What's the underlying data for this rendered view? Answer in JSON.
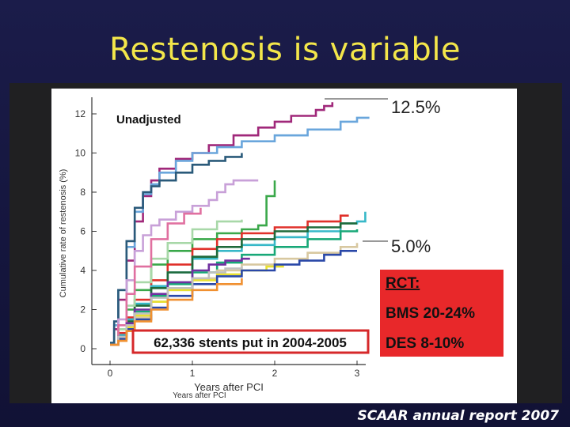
{
  "slide": {
    "title": "Restenosis is variable",
    "footer": "SCAAR annual report 2007"
  },
  "chart_data": {
    "type": "line",
    "subtitle": "Unadjusted",
    "xlabel": "Years after PCI",
    "xlabel_secondary": "Years after PCI",
    "ylabel": "Cumulative rate of restenosis (%)",
    "xlim": [
      -0.1,
      3.2
    ],
    "ylim": [
      -0.2,
      12.6
    ],
    "x_ticks": [
      0,
      1,
      2,
      3
    ],
    "y_ticks": [
      0,
      2,
      4,
      6,
      8,
      10,
      12
    ],
    "grid": false,
    "annotations": {
      "top_value": "12.5%",
      "bottom_value": "5.0%",
      "stents_note": "62,336 stents put in 2004-2005",
      "rct_title": "RCT:",
      "rct_bms": "BMS 20-24%",
      "rct_des": "DES 8-10%"
    },
    "series": [
      {
        "color": "#a0287a",
        "x": [
          0,
          0.05,
          0.1,
          0.2,
          0.3,
          0.4,
          0.5,
          0.6,
          0.8,
          1.0,
          1.2,
          1.5,
          1.8,
          2.0,
          2.2,
          2.5,
          2.6,
          2.7
        ],
        "y": [
          0.2,
          1,
          2.5,
          4.5,
          6.5,
          7.8,
          8.6,
          9.2,
          9.7,
          10.0,
          10.4,
          10.9,
          11.3,
          11.6,
          11.9,
          12.2,
          12.4,
          12.6
        ]
      },
      {
        "color": "#6aa6dc",
        "x": [
          0,
          0.05,
          0.1,
          0.2,
          0.3,
          0.4,
          0.5,
          0.6,
          0.8,
          1.0,
          1.3,
          1.6,
          2.0,
          2.4,
          2.8,
          3.0,
          3.15
        ],
        "y": [
          0.3,
          1.2,
          3,
          5.2,
          7.0,
          7.9,
          8.4,
          9.0,
          9.6,
          10.0,
          10.3,
          10.6,
          10.9,
          11.2,
          11.6,
          11.8,
          11.8
        ]
      },
      {
        "color": "#2a5a7a",
        "x": [
          0,
          0.05,
          0.1,
          0.2,
          0.3,
          0.4,
          0.5,
          0.6,
          0.8,
          1.0,
          1.2,
          1.4,
          1.6
        ],
        "y": [
          0.3,
          1.4,
          3,
          5.5,
          7.2,
          8.0,
          8.3,
          8.6,
          9.0,
          9.4,
          9.6,
          9.8,
          10.0
        ]
      },
      {
        "color": "#c8a0d8",
        "x": [
          0,
          0.1,
          0.2,
          0.3,
          0.4,
          0.5,
          0.6,
          0.8,
          1.0,
          1.2,
          1.3,
          1.4,
          1.5,
          1.7,
          1.8
        ],
        "y": [
          0.2,
          1.5,
          3.5,
          5.0,
          5.8,
          6.3,
          6.6,
          7.0,
          7.3,
          7.6,
          8.0,
          8.4,
          8.6,
          8.6,
          8.6
        ]
      },
      {
        "color": "#3aa84a",
        "x": [
          0,
          0.1,
          0.2,
          0.3,
          0.5,
          0.7,
          1.0,
          1.3,
          1.6,
          1.8,
          1.9,
          2.0
        ],
        "y": [
          0.2,
          1,
          2,
          3,
          4.3,
          5,
          5.6,
          5.9,
          6.1,
          6.3,
          7.8,
          8.6
        ]
      },
      {
        "color": "#e0302a",
        "x": [
          0,
          0.1,
          0.2,
          0.3,
          0.5,
          0.7,
          1.0,
          1.3,
          1.6,
          2.0,
          2.4,
          2.8,
          2.9
        ],
        "y": [
          0.2,
          0.8,
          1.6,
          2.5,
          3.5,
          4.3,
          5.1,
          5.6,
          5.9,
          6.2,
          6.5,
          6.8,
          6.8
        ]
      },
      {
        "color": "#37b8c8",
        "x": [
          0,
          0.1,
          0.2,
          0.3,
          0.5,
          0.7,
          1.0,
          1.3,
          1.6,
          2.0,
          2.4,
          2.8,
          3.0,
          3.1
        ],
        "y": [
          0.2,
          0.7,
          1.5,
          2.3,
          3.2,
          3.9,
          4.6,
          5.0,
          5.3,
          5.7,
          6.0,
          6.4,
          6.5,
          7.0
        ]
      },
      {
        "color": "#1f6a3a",
        "x": [
          0,
          0.1,
          0.2,
          0.3,
          0.5,
          0.7,
          1.0,
          1.3,
          1.6,
          2.0,
          2.4,
          2.8,
          3.0
        ],
        "y": [
          0.2,
          0.6,
          1.4,
          2.2,
          3.1,
          3.9,
          4.7,
          5.2,
          5.6,
          6.0,
          6.2,
          6.4,
          6.4
        ]
      },
      {
        "color": "#a8d8a8",
        "x": [
          0,
          0.1,
          0.2,
          0.3,
          0.5,
          0.7,
          1.0,
          1.3,
          1.6
        ],
        "y": [
          0.2,
          1,
          2.2,
          3.4,
          4.6,
          5.4,
          6.1,
          6.5,
          6.6
        ]
      },
      {
        "color": "#e070a0",
        "x": [
          0,
          0.1,
          0.2,
          0.3,
          0.5,
          0.7,
          0.9,
          1.1
        ],
        "y": [
          0.2,
          1.2,
          2.8,
          4.2,
          5.6,
          6.4,
          6.9,
          7.2
        ]
      },
      {
        "color": "#18a878",
        "x": [
          0,
          0.1,
          0.2,
          0.3,
          0.5,
          0.7,
          1.0,
          1.3,
          1.6,
          2.0,
          2.4,
          2.8,
          3.0
        ],
        "y": [
          0.2,
          0.6,
          1.2,
          1.9,
          2.7,
          3.3,
          3.9,
          4.4,
          4.8,
          5.2,
          5.6,
          6.0,
          6.1
        ]
      },
      {
        "color": "#d8c8a0",
        "x": [
          0,
          0.1,
          0.2,
          0.3,
          0.5,
          0.7,
          1.0,
          1.3,
          1.6,
          2.0,
          2.4,
          2.8,
          3.0
        ],
        "y": [
          0.2,
          0.5,
          1.0,
          1.6,
          2.4,
          3.0,
          3.6,
          4.0,
          4.3,
          4.6,
          4.9,
          5.2,
          5.4
        ]
      },
      {
        "color": "#7030a0",
        "x": [
          0,
          0.1,
          0.2,
          0.3,
          0.5,
          0.7,
          1.0,
          1.2,
          1.4,
          1.6,
          1.7
        ],
        "y": [
          0.2,
          0.6,
          1.3,
          2.0,
          2.8,
          3.4,
          4.0,
          4.3,
          4.5,
          4.6,
          4.6
        ]
      },
      {
        "color": "#e8e030",
        "x": [
          0,
          0.1,
          0.2,
          0.3,
          0.5,
          0.7,
          1.0,
          1.3,
          1.6,
          1.9,
          2.1
        ],
        "y": [
          0.2,
          0.5,
          1.1,
          1.7,
          2.4,
          3.0,
          3.5,
          3.8,
          4.0,
          4.2,
          4.3
        ]
      },
      {
        "color": "#2a48a8",
        "x": [
          0,
          0.1,
          0.2,
          0.3,
          0.5,
          0.7,
          1.0,
          1.3,
          1.6,
          2.0,
          2.3,
          2.6,
          2.8,
          3.0
        ],
        "y": [
          0.2,
          0.5,
          1.0,
          1.5,
          2.1,
          2.7,
          3.3,
          3.7,
          4.0,
          4.3,
          4.5,
          4.8,
          5.0,
          5.0
        ]
      },
      {
        "color": "#c0c0c0",
        "x": [
          0,
          0.1,
          0.2,
          0.3,
          0.5,
          0.7,
          1.0,
          1.2,
          1.4,
          1.6
        ],
        "y": [
          0.2,
          0.6,
          1.2,
          1.8,
          2.6,
          3.1,
          3.6,
          3.9,
          4.1,
          4.2
        ]
      },
      {
        "color": "#f09030",
        "x": [
          0,
          0.1,
          0.2,
          0.3,
          0.5,
          0.7,
          1.0,
          1.3,
          1.6
        ],
        "y": [
          0.2,
          0.4,
          0.9,
          1.4,
          2.0,
          2.5,
          3.0,
          3.3,
          3.6
        ]
      }
    ]
  }
}
